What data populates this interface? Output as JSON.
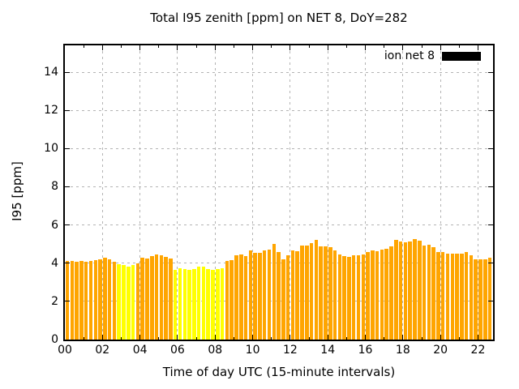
{
  "chart_data": {
    "type": "bar",
    "title": "Total I95 zenith [ppm] on NET 8, DoY=282",
    "xlabel": "Time of day UTC (15-minute intervals)",
    "ylabel": "I95 [ppm]",
    "interval_minutes": 15,
    "x_domain_hours": [
      0,
      22.8
    ],
    "ylim": [
      0,
      15.4
    ],
    "grid": "dashed gray on major ticks",
    "x_tick_labels": [
      "00",
      "02",
      "04",
      "06",
      "08",
      "10",
      "12",
      "14",
      "16",
      "18",
      "20",
      "22"
    ],
    "y_tick_labels": [
      "0",
      "2",
      "4",
      "6",
      "8",
      "10",
      "12",
      "14"
    ],
    "legend": {
      "label": "ion net 8",
      "position": "top-right-inside",
      "swatch_color": "#000000"
    },
    "bar_colors": {
      "o": "#ffa500",
      "y": "#ffff00"
    },
    "bar_color_names": {
      "o": "orange",
      "y": "yellow"
    },
    "points": [
      [
        "00:00",
        4.1,
        "o"
      ],
      [
        "00:15",
        4.1,
        "o"
      ],
      [
        "00:30",
        4.06,
        "o"
      ],
      [
        "00:45",
        4.1,
        "o"
      ],
      [
        "01:00",
        4.06,
        "o"
      ],
      [
        "01:15",
        4.1,
        "o"
      ],
      [
        "01:30",
        4.16,
        "o"
      ],
      [
        "01:45",
        4.2,
        "o"
      ],
      [
        "02:00",
        4.3,
        "o"
      ],
      [
        "02:15",
        4.18,
        "o"
      ],
      [
        "02:30",
        4.08,
        "o"
      ],
      [
        "02:45",
        3.95,
        "y"
      ],
      [
        "03:00",
        3.9,
        "y"
      ],
      [
        "03:15",
        3.84,
        "y"
      ],
      [
        "03:30",
        3.9,
        "y"
      ],
      [
        "03:45",
        4.0,
        "o"
      ],
      [
        "04:00",
        4.27,
        "o"
      ],
      [
        "04:15",
        4.23,
        "o"
      ],
      [
        "04:30",
        4.38,
        "o"
      ],
      [
        "04:45",
        4.46,
        "o"
      ],
      [
        "05:00",
        4.43,
        "o"
      ],
      [
        "05:15",
        4.33,
        "o"
      ],
      [
        "05:30",
        4.26,
        "o"
      ],
      [
        "05:45",
        3.66,
        "y"
      ],
      [
        "06:00",
        3.73,
        "y"
      ],
      [
        "06:15",
        3.69,
        "y"
      ],
      [
        "06:30",
        3.66,
        "y"
      ],
      [
        "06:45",
        3.7,
        "y"
      ],
      [
        "07:00",
        3.8,
        "y"
      ],
      [
        "07:15",
        3.84,
        "y"
      ],
      [
        "07:30",
        3.7,
        "y"
      ],
      [
        "07:45",
        3.64,
        "y"
      ],
      [
        "08:00",
        3.7,
        "y"
      ],
      [
        "08:15",
        3.72,
        "y"
      ],
      [
        "08:30",
        4.12,
        "o"
      ],
      [
        "08:45",
        4.15,
        "o"
      ],
      [
        "09:00",
        4.4,
        "o"
      ],
      [
        "09:15",
        4.45,
        "o"
      ],
      [
        "09:30",
        4.36,
        "o"
      ],
      [
        "09:45",
        4.65,
        "o"
      ],
      [
        "10:00",
        4.55,
        "o"
      ],
      [
        "10:15",
        4.55,
        "o"
      ],
      [
        "10:30",
        4.65,
        "o"
      ],
      [
        "10:45",
        4.72,
        "o"
      ],
      [
        "11:00",
        5.0,
        "o"
      ],
      [
        "11:15",
        4.58,
        "o"
      ],
      [
        "11:30",
        4.22,
        "o"
      ],
      [
        "11:45",
        4.43,
        "o"
      ],
      [
        "12:00",
        4.65,
        "o"
      ],
      [
        "12:15",
        4.61,
        "o"
      ],
      [
        "12:30",
        4.93,
        "o"
      ],
      [
        "12:45",
        4.93,
        "o"
      ],
      [
        "13:00",
        5.03,
        "o"
      ],
      [
        "13:15",
        5.21,
        "o"
      ],
      [
        "13:30",
        4.89,
        "o"
      ],
      [
        "13:45",
        4.86,
        "o"
      ],
      [
        "14:00",
        4.83,
        "o"
      ],
      [
        "14:15",
        4.65,
        "o"
      ],
      [
        "14:30",
        4.45,
        "o"
      ],
      [
        "14:45",
        4.36,
        "o"
      ],
      [
        "15:00",
        4.32,
        "o"
      ],
      [
        "15:15",
        4.43,
        "o"
      ],
      [
        "15:30",
        4.43,
        "o"
      ],
      [
        "15:45",
        4.46,
        "o"
      ],
      [
        "16:00",
        4.58,
        "o"
      ],
      [
        "16:15",
        4.65,
        "o"
      ],
      [
        "16:30",
        4.61,
        "o"
      ],
      [
        "16:45",
        4.69,
        "o"
      ],
      [
        "17:00",
        4.75,
        "o"
      ],
      [
        "17:15",
        4.87,
        "o"
      ],
      [
        "17:30",
        5.21,
        "o"
      ],
      [
        "17:45",
        5.14,
        "o"
      ],
      [
        "18:00",
        5.11,
        "o"
      ],
      [
        "18:15",
        5.14,
        "o"
      ],
      [
        "18:30",
        5.25,
        "o"
      ],
      [
        "18:45",
        5.17,
        "o"
      ],
      [
        "19:00",
        4.93,
        "o"
      ],
      [
        "19:15",
        4.97,
        "o"
      ],
      [
        "19:30",
        4.83,
        "o"
      ],
      [
        "19:45",
        4.6,
        "o"
      ],
      [
        "20:00",
        4.6,
        "o"
      ],
      [
        "20:15",
        4.5,
        "o"
      ],
      [
        "20:30",
        4.5,
        "o"
      ],
      [
        "20:45",
        4.48,
        "o"
      ],
      [
        "21:00",
        4.5,
        "o"
      ],
      [
        "21:15",
        4.58,
        "o"
      ],
      [
        "21:30",
        4.4,
        "o"
      ],
      [
        "21:45",
        4.22,
        "o"
      ],
      [
        "22:00",
        4.22,
        "o"
      ],
      [
        "22:15",
        4.18,
        "o"
      ],
      [
        "22:30",
        4.29,
        "o"
      ],
      [
        "22:45",
        4.4,
        "o"
      ]
    ]
  }
}
